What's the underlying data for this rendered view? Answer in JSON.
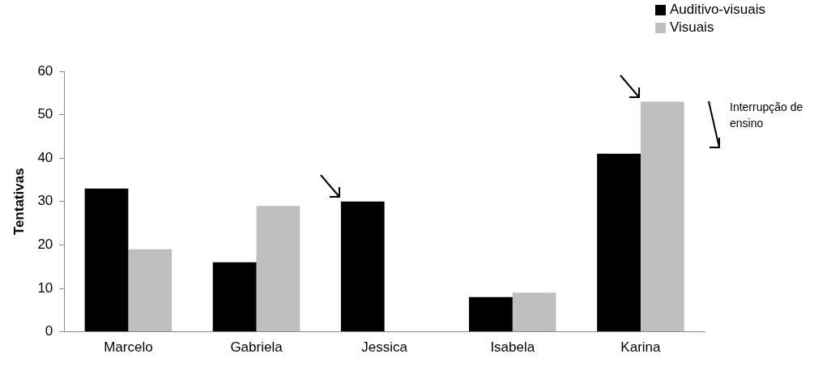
{
  "chart_data": {
    "type": "bar",
    "ylabel": "Tentativas",
    "categories": [
      "Marcelo",
      "Gabriela",
      "Jessica",
      "Isabela",
      "Karina"
    ],
    "series": [
      {
        "name": "Auditivo-visuais",
        "color": "#000000",
        "values": [
          33,
          16,
          30,
          8,
          41
        ]
      },
      {
        "name": "Visuais",
        "color": "#bfbfbf",
        "values": [
          19,
          29,
          null,
          9,
          53
        ]
      }
    ],
    "ylim": [
      0,
      60
    ],
    "yticks": [
      0,
      10,
      20,
      30,
      40,
      50,
      60
    ],
    "grid": false,
    "legend": "top right",
    "annotations": [
      "Interrupção de ensino"
    ]
  }
}
